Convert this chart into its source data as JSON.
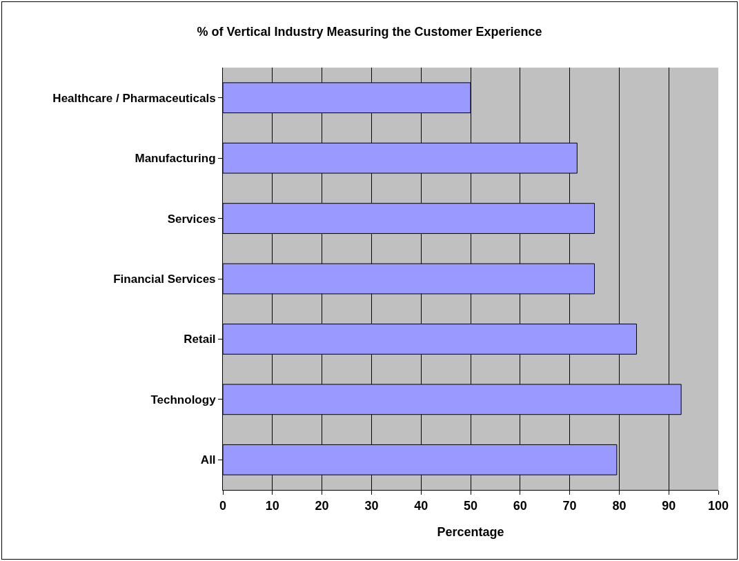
{
  "chart_data": {
    "type": "bar",
    "orientation": "horizontal",
    "title": "% of Vertical Industry Measuring the Customer Experience",
    "xlabel": "Percentage",
    "categories": [
      "Healthcare / Pharmaceuticals",
      "Manufacturing",
      "Services",
      "Financial Services",
      "Retail",
      "Technology",
      "All"
    ],
    "values": [
      50,
      71.5,
      75,
      75,
      83.5,
      92.5,
      79.5
    ],
    "color": "#9999ff",
    "xlim": [
      0,
      100
    ],
    "xticks": [
      0,
      10,
      20,
      30,
      40,
      50,
      60,
      70,
      80,
      90,
      100
    ],
    "grid": "x"
  }
}
